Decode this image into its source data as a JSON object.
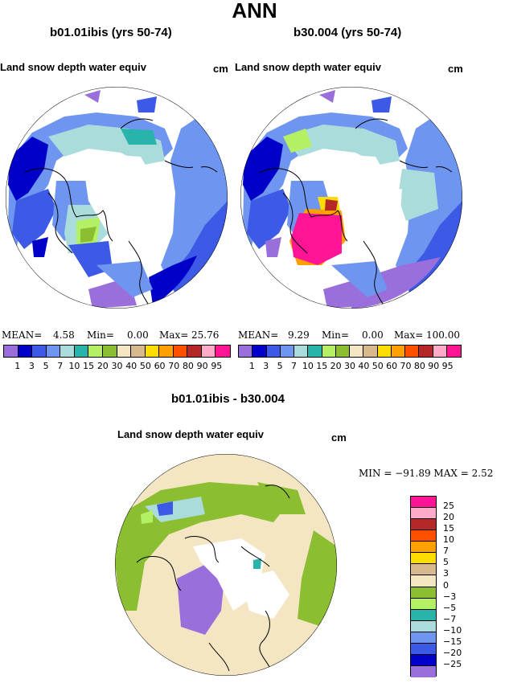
{
  "title": "ANN",
  "panels": [
    {
      "subtitle": "b01.01ibis (yrs 50-74)",
      "left_label": "Land snow depth water equiv",
      "unit": "cm",
      "stats": {
        "mean_label": "MEAN=",
        "mean": "4.58",
        "min_label": "Min=",
        "min": "0.00",
        "max_label": "Max=",
        "max": "25.76"
      }
    },
    {
      "subtitle": "b30.004 (yrs 50-74)",
      "left_label": "Land snow depth water equiv",
      "unit": "cm",
      "stats": {
        "mean_label": "MEAN=",
        "mean": "9.29",
        "min_label": "Min=",
        "min": "0.00",
        "max_label": "Max=",
        "max": "100.00"
      }
    }
  ],
  "abs_colorbar": {
    "colors": [
      "#9a6fdc",
      "#0000c8",
      "#3c5ae6",
      "#6e96f0",
      "#aadcdc",
      "#28b4aa",
      "#b4f064",
      "#8cbe32",
      "#f5e6c3",
      "#d7b98c",
      "#ffdc00",
      "#ffa000",
      "#ff5000",
      "#b42828",
      "#ffaac8",
      "#ff1496"
    ],
    "labels": [
      "1",
      "3",
      "5",
      "7",
      "10",
      "15",
      "20",
      "30",
      "40",
      "50",
      "60",
      "70",
      "80",
      "90",
      "95"
    ]
  },
  "diff_panel": {
    "subtitle": "b01.01ibis - b30.004",
    "left_label": "Land snow depth water equiv",
    "unit": "cm",
    "minmax": "MIN = −91.89 MAX =    2.52",
    "colors": [
      "#ff1496",
      "#ffaac8",
      "#b42828",
      "#ff5000",
      "#ffa000",
      "#ffdc00",
      "#d7b98c",
      "#f5e6c3",
      "#8cbe32",
      "#b4f064",
      "#28b4aa",
      "#aadcdc",
      "#6e96f0",
      "#3c5ae6",
      "#0000c8",
      "#9a6fdc"
    ],
    "labels": [
      "25",
      "20",
      "15",
      "10",
      "7",
      "5",
      "3",
      "0",
      "−3",
      "−5",
      "−7",
      "−10",
      "−15",
      "−20",
      "−25"
    ]
  }
}
